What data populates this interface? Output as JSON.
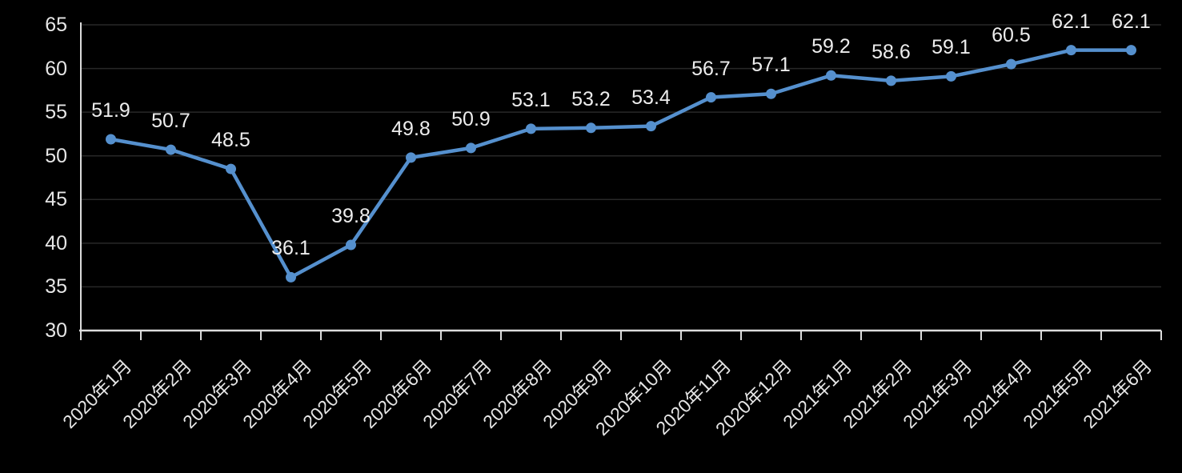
{
  "chart_data": {
    "type": "line",
    "title": "",
    "xlabel": "",
    "ylabel": "",
    "categories": [
      "2020年1月",
      "2020年2月",
      "2020年3月",
      "2020年4月",
      "2020年5月",
      "2020年6月",
      "2020年7月",
      "2020年8月",
      "2020年9月",
      "2020年10月",
      "2020年11月",
      "2020年12月",
      "2021年1月",
      "2021年2月",
      "2021年3月",
      "2021年4月",
      "2021年5月",
      "2021年6月"
    ],
    "series": [
      {
        "name": "",
        "values": [
          51.9,
          50.7,
          48.5,
          36.1,
          39.8,
          49.8,
          50.9,
          53.1,
          53.2,
          53.4,
          56.7,
          57.1,
          59.2,
          58.6,
          59.1,
          60.5,
          62.1,
          62.1
        ]
      }
    ],
    "data_labels": [
      "51.9",
      "50.7",
      "48.5",
      "36.1",
      "39.8",
      "49.8",
      "50.9",
      "53.1",
      "53.2",
      "53.4",
      "56.7",
      "57.1",
      "59.2",
      "58.6",
      "59.1",
      "60.5",
      "62.1",
      "62.1"
    ],
    "ylim": [
      30,
      65
    ],
    "yticks": [
      30,
      35,
      40,
      45,
      50,
      55,
      60,
      65
    ],
    "grid": true,
    "legend": "none",
    "marker": "circle",
    "x_label_rotation_deg": 45,
    "style": {
      "background": "#000000",
      "line_color": "#5590CE",
      "marker_color": "#5590CE",
      "text_color": "#E6E6E6",
      "grid_color": "#282828",
      "axis_color": "#DCDCDC"
    }
  }
}
